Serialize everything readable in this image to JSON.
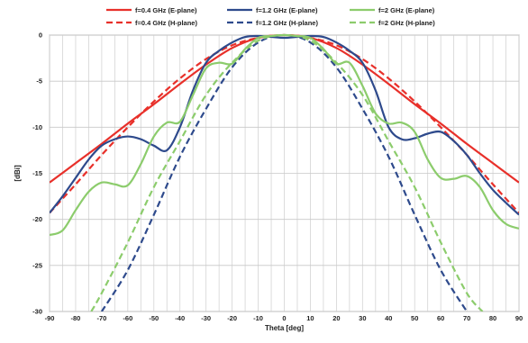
{
  "chart_data": {
    "type": "line",
    "title": "",
    "xlabel": "Theta [deg]",
    "ylabel": "[dBi]",
    "xlim": [
      -90,
      90
    ],
    "ylim": [
      -30,
      0
    ],
    "x_ticks": [
      -90,
      -80,
      -70,
      -60,
      -50,
      -40,
      -30,
      -20,
      -10,
      0,
      10,
      20,
      30,
      40,
      50,
      60,
      70,
      80,
      90
    ],
    "y_ticks": [
      0,
      -5,
      -10,
      -15,
      -20,
      -25,
      -30
    ],
    "grid": true,
    "legend_position": "top",
    "series": [
      {
        "name": "f=0.4 GHz (E-plane)",
        "color": "#e8302a",
        "dash": "solid",
        "x": [
          -90,
          -80,
          -70,
          -60,
          -50,
          -40,
          -30,
          -20,
          -10,
          0,
          10,
          20,
          30,
          40,
          50,
          60,
          70,
          80,
          90
        ],
        "y": [
          -16.0,
          -13.9,
          -11.8,
          -9.6,
          -7.5,
          -5.3,
          -3.2,
          -1.4,
          -0.3,
          0,
          -0.3,
          -1.4,
          -3.2,
          -5.3,
          -7.5,
          -9.6,
          -11.8,
          -13.9,
          -16.0
        ]
      },
      {
        "name": "f=0.4 GHz (H-plane)",
        "color": "#e8302a",
        "dash": "dashed",
        "x": [
          -90,
          -80,
          -70,
          -60,
          -50,
          -40,
          -30,
          -20,
          -10,
          0,
          10,
          20,
          30,
          40,
          50,
          60,
          70,
          80,
          90
        ],
        "y": [
          -19.3,
          -16.2,
          -13.0,
          -10.0,
          -7.2,
          -4.7,
          -2.6,
          -1.1,
          -0.3,
          0,
          -0.3,
          -1.1,
          -2.6,
          -4.7,
          -7.2,
          -10.0,
          -13.0,
          -16.2,
          -19.3
        ]
      },
      {
        "name": "f=1.2 GHz (E-plane)",
        "color": "#2e4a8c",
        "dash": "solid",
        "x": [
          -90,
          -85,
          -80,
          -75,
          -70,
          -65,
          -60,
          -55,
          -50,
          -45,
          -40,
          -35,
          -30,
          -25,
          -20,
          -15,
          -10,
          -5,
          0,
          5,
          10,
          15,
          20,
          25,
          30,
          35,
          40,
          45,
          50,
          55,
          60,
          65,
          70,
          75,
          80,
          85,
          90
        ],
        "y": [
          -19.3,
          -17.5,
          -15.5,
          -13.5,
          -12.0,
          -11.3,
          -11.0,
          -11.3,
          -12.0,
          -12.5,
          -10.0,
          -6.0,
          -3.0,
          -1.7,
          -0.8,
          -0.2,
          -0.1,
          -0.2,
          -0.3,
          -0.2,
          -0.1,
          -0.2,
          -0.8,
          -1.7,
          -3.0,
          -6.0,
          -10.0,
          -11.3,
          -11.2,
          -10.7,
          -10.5,
          -11.5,
          -13.0,
          -15.0,
          -16.8,
          -18.2,
          -19.5
        ]
      },
      {
        "name": "f=1.2 GHz (H-plane)",
        "color": "#2e4a8c",
        "dash": "dashed",
        "x": [
          -70,
          -60,
          -50,
          -40,
          -30,
          -20,
          -10,
          0,
          10,
          20,
          30,
          40,
          50,
          60,
          70
        ],
        "y": [
          -30.0,
          -25.5,
          -19.5,
          -13.2,
          -8.0,
          -3.5,
          -0.8,
          0,
          -0.8,
          -3.5,
          -8.0,
          -13.2,
          -19.5,
          -25.5,
          -30.0
        ]
      },
      {
        "name": "f=2 GHz (E-plane)",
        "color": "#8ccc6c",
        "dash": "solid",
        "x": [
          -90,
          -85,
          -80,
          -75,
          -70,
          -65,
          -60,
          -55,
          -50,
          -45,
          -40,
          -35,
          -30,
          -25,
          -20,
          -15,
          -10,
          -5,
          0,
          5,
          10,
          15,
          20,
          25,
          30,
          35,
          40,
          45,
          50,
          55,
          60,
          65,
          70,
          75,
          80,
          85,
          90
        ],
        "y": [
          -21.7,
          -21.2,
          -19.0,
          -17.0,
          -16.0,
          -16.2,
          -16.3,
          -14.0,
          -11.0,
          -9.5,
          -9.4,
          -6.5,
          -3.6,
          -3.0,
          -3.1,
          -1.5,
          -0.3,
          -0.1,
          0.0,
          -0.1,
          -0.3,
          -1.5,
          -3.1,
          -3.0,
          -5.5,
          -8.5,
          -9.6,
          -9.5,
          -10.5,
          -13.5,
          -15.5,
          -15.6,
          -15.3,
          -16.5,
          -19.0,
          -20.5,
          -21.0
        ]
      },
      {
        "name": "f=2 GHz (H-plane)",
        "color": "#8ccc6c",
        "dash": "dashed",
        "x": [
          -74,
          -70,
          -60,
          -50,
          -40,
          -30,
          -20,
          -10,
          0,
          10,
          20,
          30,
          40,
          50,
          60,
          70,
          76
        ],
        "y": [
          -30.0,
          -28.0,
          -22.5,
          -16.5,
          -11.5,
          -6.5,
          -3.0,
          -0.6,
          0,
          -0.6,
          -3.0,
          -6.5,
          -11.5,
          -16.5,
          -22.5,
          -28.0,
          -30.0
        ]
      }
    ]
  }
}
